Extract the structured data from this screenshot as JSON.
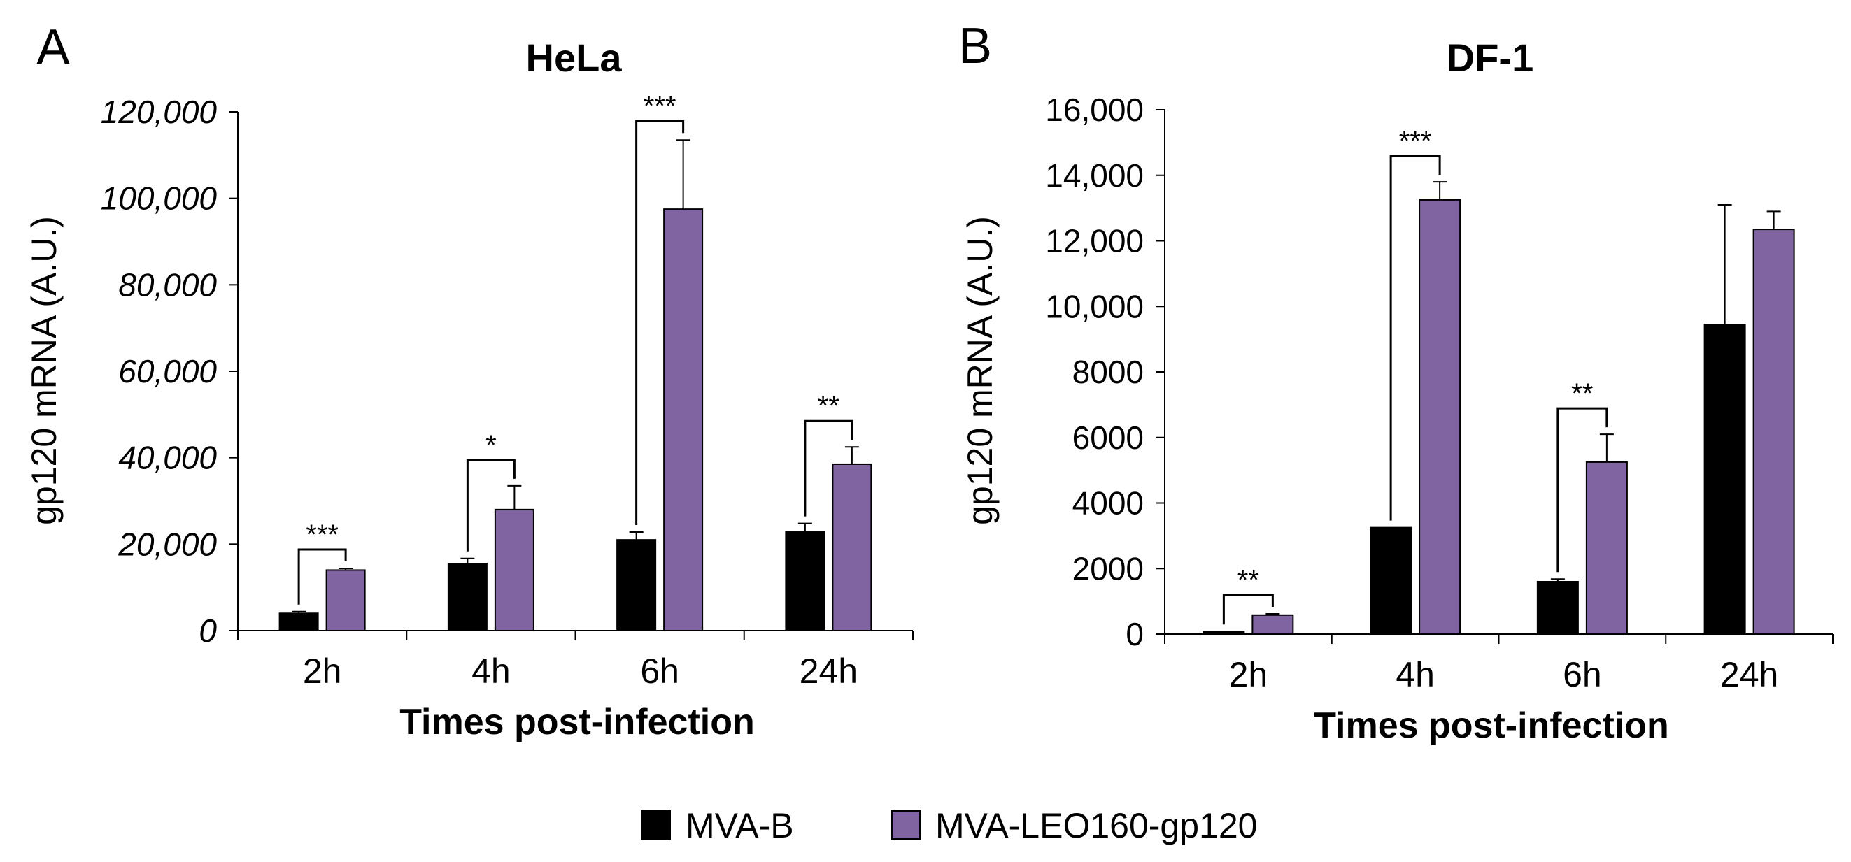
{
  "chart_data": [
    {
      "type": "bar",
      "panel_label": "A",
      "title": "HeLa",
      "ylabel": "gp120 mRNA (A.U.)",
      "xlabel": "Times post-infection",
      "categories": [
        "2h",
        "4h",
        "6h",
        "24h"
      ],
      "ylim": [
        0,
        120000
      ],
      "yticks": [
        0,
        20000,
        40000,
        60000,
        80000,
        100000,
        120000
      ],
      "ytick_labels": [
        "0",
        "20,000",
        "40,000",
        "60,000",
        "80,000",
        "100,000",
        "120,000"
      ],
      "series": [
        {
          "name": "MVA-B",
          "color": "#000000",
          "values": [
            4000,
            15500,
            21000,
            22800
          ],
          "errors": [
            400,
            1200,
            1800,
            2000
          ]
        },
        {
          "name": "MVA-LEO160-gp120",
          "color": "#8064a2",
          "values": [
            14000,
            28000,
            97500,
            38500
          ],
          "errors": [
            400,
            5500,
            16000,
            4000
          ]
        }
      ],
      "significance": [
        "***",
        "*",
        "***",
        "**"
      ],
      "grid": false
    },
    {
      "type": "bar",
      "panel_label": "B",
      "title": "DF-1",
      "ylabel": "gp120 mRNA (A.U.)",
      "xlabel": "Times post-infection",
      "categories": [
        "2h",
        "4h",
        "6h",
        "24h"
      ],
      "ylim": [
        0,
        16000
      ],
      "yticks": [
        0,
        2000,
        4000,
        6000,
        8000,
        10000,
        12000,
        14000,
        16000
      ],
      "ytick_labels": [
        "0",
        "2000",
        "4000",
        "6000",
        "8000",
        "10,000",
        "12,000",
        "14,000",
        "16,000"
      ],
      "series": [
        {
          "name": "MVA-B",
          "color": "#000000",
          "values": [
            80,
            3250,
            1600,
            9450
          ],
          "errors": [
            0,
            0,
            80,
            3650
          ]
        },
        {
          "name": "MVA-LEO160-gp120",
          "color": "#8064a2",
          "values": [
            580,
            13250,
            5250,
            12350
          ],
          "errors": [
            40,
            550,
            850,
            550
          ]
        }
      ],
      "significance": [
        "**",
        "***",
        "**",
        ""
      ],
      "grid": false
    }
  ],
  "legend": {
    "position": "bottom-center",
    "items": [
      {
        "label": "MVA-B",
        "color": "#000000"
      },
      {
        "label": "MVA-LEO160-gp120",
        "color": "#8064a2"
      }
    ]
  }
}
